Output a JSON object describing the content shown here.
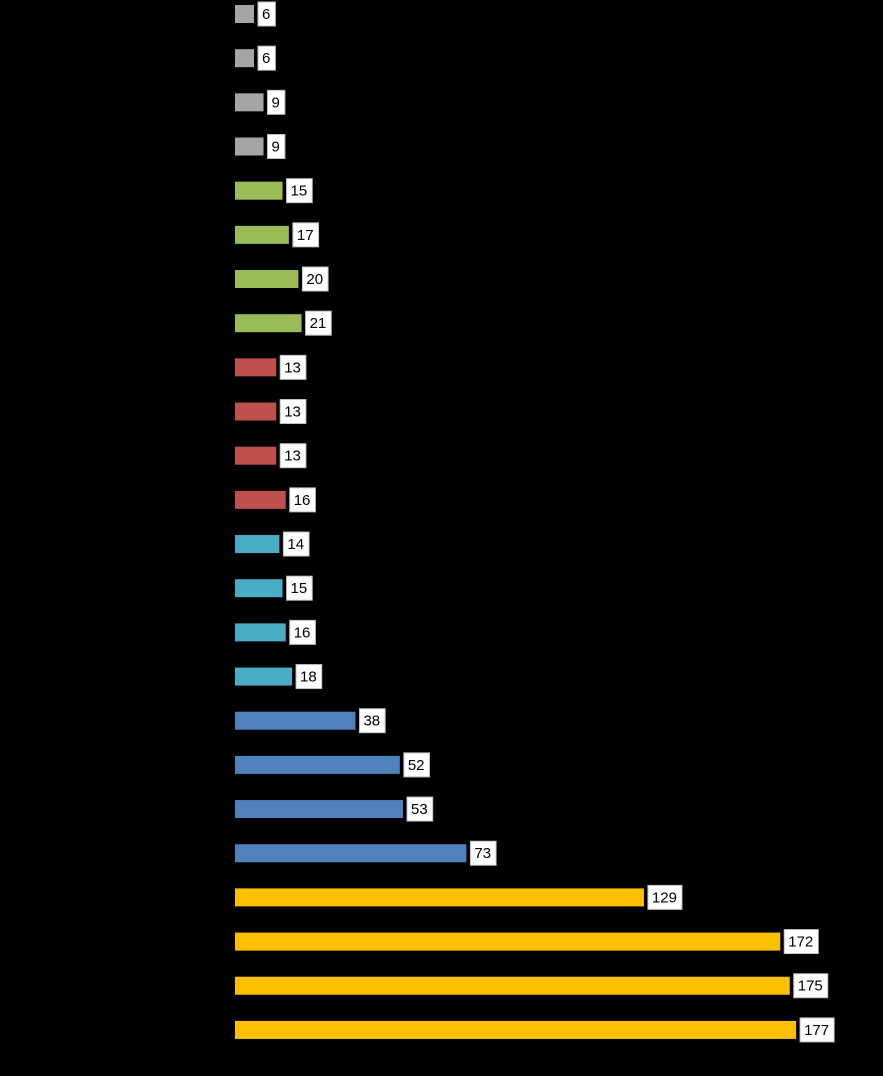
{
  "chart_data": {
    "type": "bar",
    "orientation": "horizontal",
    "values": [
      6,
      6,
      9,
      9,
      15,
      17,
      20,
      21,
      13,
      13,
      13,
      16,
      14,
      15,
      16,
      18,
      38,
      52,
      53,
      73,
      129,
      172,
      175,
      177
    ],
    "colors": [
      "#a5a5a5",
      "#a5a5a5",
      "#a5a5a5",
      "#a5a5a5",
      "#9bbb59",
      "#9bbb59",
      "#9bbb59",
      "#9bbb59",
      "#c0504d",
      "#c0504d",
      "#c0504d",
      "#c0504d",
      "#4bacc6",
      "#4bacc6",
      "#4bacc6",
      "#4bacc6",
      "#4f81bd",
      "#4f81bd",
      "#4f81bd",
      "#4f81bd",
      "#ffc000",
      "#ffc000",
      "#ffc000",
      "#ffc000"
    ],
    "xlim": [
      0,
      200
    ],
    "background": "#000000"
  }
}
